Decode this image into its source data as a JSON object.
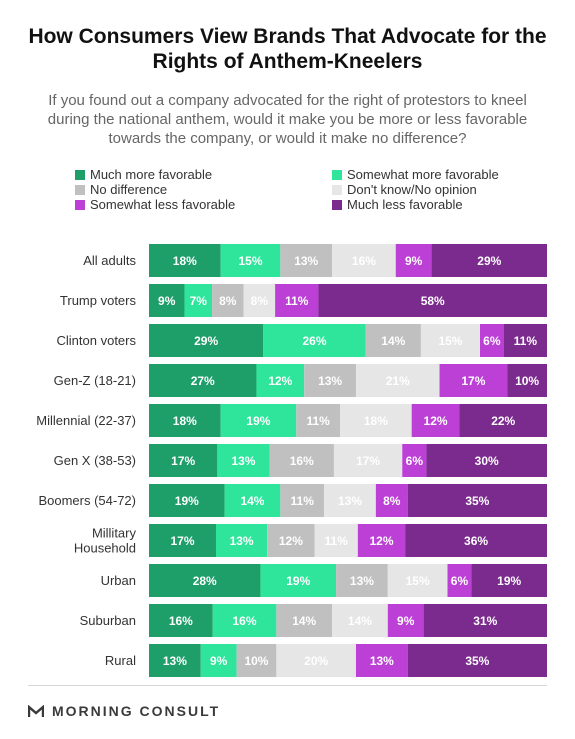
{
  "title": "How Consumers View Brands That Advocate for the Rights of Anthem-Kneelers",
  "subtitle": "If you found out a company advocated for the right of protestors to kneel during the national anthem, would it make you be more or less favorable towards the company, or would it make no difference?",
  "brand": {
    "name": "MORNING CONSULT",
    "icon": "morning-consult-logo-icon"
  },
  "chart_data": {
    "type": "bar",
    "stacked": true,
    "orientation": "horizontal",
    "value_unit": "%",
    "xlim": [
      0,
      100
    ],
    "grid": false,
    "legend_position": "top",
    "categories": [
      "All adults",
      "Trump voters",
      "Clinton voters",
      "Gen-Z (18-21)",
      "Millennial (22-37)",
      "Gen X (38-53)",
      "Boomers (54-72)",
      "Millitary Household",
      "Urban",
      "Suburban",
      "Rural"
    ],
    "series": [
      {
        "name": "Much more favorable",
        "color": "#1e9f6a",
        "values": [
          18,
          9,
          29,
          27,
          18,
          17,
          19,
          17,
          28,
          16,
          13
        ]
      },
      {
        "name": "Somewhat more favorable",
        "color": "#2ee59b",
        "values": [
          15,
          7,
          26,
          12,
          19,
          13,
          14,
          13,
          19,
          16,
          9
        ]
      },
      {
        "name": "No difference",
        "color": "#c0c0c0",
        "values": [
          13,
          8,
          14,
          13,
          11,
          16,
          11,
          12,
          13,
          14,
          10
        ]
      },
      {
        "name": "Don't know/No opinion",
        "color": "#e6e6e6",
        "values": [
          16,
          8,
          15,
          21,
          18,
          17,
          13,
          11,
          15,
          14,
          20
        ]
      },
      {
        "name": "Somewhat less favorable",
        "color": "#bc40d6",
        "values": [
          9,
          11,
          6,
          17,
          12,
          6,
          8,
          12,
          6,
          9,
          13
        ]
      },
      {
        "name": "Much less favorable",
        "color": "#7b2a8e",
        "values": [
          29,
          58,
          11,
          10,
          22,
          30,
          35,
          36,
          19,
          31,
          35
        ]
      }
    ]
  }
}
